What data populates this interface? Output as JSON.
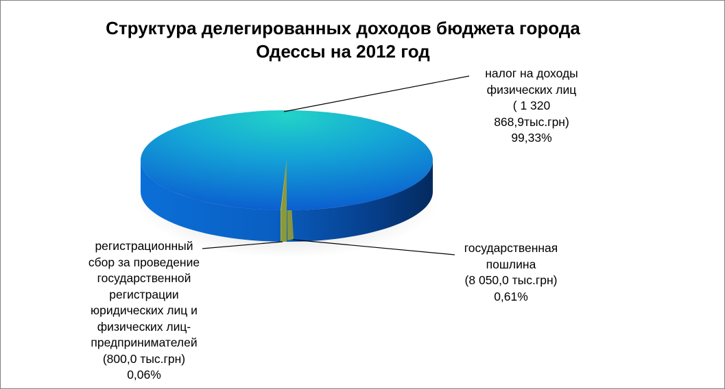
{
  "chart_data": {
    "type": "pie",
    "title": [
      "Структура делегированных доходов бюджета города",
      "Одессы на 2012 год"
    ],
    "slices": [
      {
        "label_lines": [
          "налог на доходы",
          "физических лиц",
          "( 1 320",
          "868,9тыс.грн)",
          "99,33%"
        ],
        "amount": 1320868.9,
        "unit": "тыс.грн",
        "percent": 99.33,
        "color": "#1b8fd8"
      },
      {
        "label_lines": [
          "государственная",
          "пошлина",
          "(8 050,0 тыс.грн)",
          "0,61%"
        ],
        "amount": 8050.0,
        "unit": "тыс.грн",
        "percent": 0.61,
        "color": "#8a9a3a"
      },
      {
        "label_lines": [
          "регистрационный",
          "сбор за проведение",
          "государственной",
          "регистрации",
          "юридических лиц и",
          "физических лиц-",
          "предпринимателей",
          "(800,0 тыс.грн)",
          "0,06%"
        ],
        "amount": 800.0,
        "unit": "тыс.грн",
        "percent": 0.06,
        "color": "#c8c040"
      }
    ],
    "legend": "none",
    "style": "3d-pie"
  }
}
